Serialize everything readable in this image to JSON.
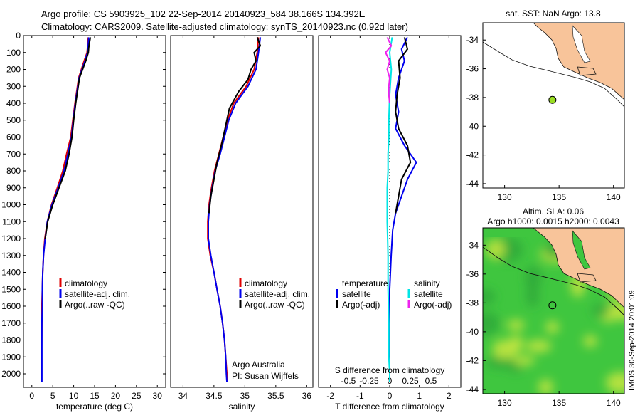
{
  "header": {
    "line1": "Argo profile: CS 5903925_102 22-Sep-2014 20140923_584 38.166S 134.392E",
    "line2": "Climatology: CARS2009. Satellite-adjusted climatology: synTS_20140923.nc (0.92d later)"
  },
  "colors": {
    "climatology": "#e00000",
    "satellite": "#0000ee",
    "argo": "#000000",
    "sal_satellite": "#00e5e5",
    "sal_argo": "#ee22ee",
    "land": "#f8c49a",
    "float_marker": "#99dd22",
    "sst_green": "#3fc63f",
    "sst_yellow": "#c8e640"
  },
  "vertical_label": "IMOS 30-Sep-2014 20:01:09",
  "chart_data": [
    {
      "type": "line",
      "id": "temperature",
      "xlabel": "temperature (deg C)",
      "xlim": [
        -2,
        32
      ],
      "xticks": [
        "0",
        "5",
        "10",
        "15",
        "20",
        "25",
        "30"
      ],
      "ylim": [
        0,
        2080
      ],
      "yinvert": true,
      "yticks": [
        "0",
        "100",
        "200",
        "300",
        "400",
        "500",
        "600",
        "700",
        "800",
        "900",
        "1000",
        "1100",
        "1200",
        "1300",
        "1400",
        "1500",
        "1600",
        "1700",
        "1800",
        "1900",
        "2000"
      ],
      "legend": [
        "climatology",
        "satellite-adj. clim.",
        "Argo(..raw -QC)"
      ],
      "series": [
        {
          "name": "climatology",
          "color": "#e00000",
          "x": [
            13.5,
            13.4,
            13.2,
            12.5,
            11.2,
            10.3,
            9.8,
            9.3,
            8.3,
            7.4,
            6.1,
            4.7,
            3.7,
            3.1,
            2.8,
            2.6,
            2.5,
            2.4,
            2.4,
            2.35,
            2.3,
            2.3
          ],
          "y": [
            10,
            50,
            100,
            150,
            250,
            400,
            500,
            600,
            700,
            800,
            900,
            1000,
            1100,
            1200,
            1300,
            1400,
            1500,
            1600,
            1700,
            1800,
            1900,
            2050
          ]
        },
        {
          "name": "satellite-adj. clim.",
          "color": "#0000ee",
          "x": [
            13.6,
            13.5,
            13.3,
            12.7,
            11.3,
            10.4,
            9.9,
            9.5,
            8.6,
            7.7,
            6.3,
            4.8,
            3.7,
            3.2,
            2.8,
            2.6,
            2.5,
            2.5,
            2.4,
            2.4,
            2.4,
            2.4
          ],
          "y": [
            10,
            50,
            100,
            150,
            250,
            400,
            500,
            600,
            700,
            800,
            900,
            1000,
            1100,
            1200,
            1300,
            1400,
            1500,
            1600,
            1700,
            1800,
            1900,
            2050
          ]
        },
        {
          "name": "Argo(..raw -QC)",
          "color": "#000000",
          "x": [
            14.0,
            13.8,
            13.6,
            13.5,
            12.9,
            11.4,
            10.5,
            10.0,
            9.6,
            8.9,
            8.0,
            6.5,
            5.0,
            3.8,
            3.2
          ],
          "y": [
            10,
            40,
            70,
            100,
            150,
            250,
            400,
            500,
            600,
            700,
            800,
            900,
            1000,
            1100,
            1200
          ]
        }
      ]
    },
    {
      "type": "line",
      "id": "salinity",
      "xlabel": "salinity",
      "xlim": [
        33.8,
        36.1
      ],
      "xticks": [
        "34",
        "34.5",
        "35",
        "35.5",
        "36"
      ],
      "ylim": [
        0,
        2080
      ],
      "yinvert": true,
      "legend": [
        "climatology",
        "satellite-adj. clim.",
        "Argo(..raw -QC)"
      ],
      "annotation": [
        "Argo Australia",
        "PI: Susan Wijffels"
      ],
      "series": [
        {
          "name": "climatology",
          "color": "#e00000",
          "x": [
            35.22,
            35.2,
            35.15,
            35.02,
            34.82,
            34.72,
            34.65,
            34.58,
            34.51,
            34.46,
            34.42,
            34.4,
            34.4,
            34.44,
            34.5,
            34.55,
            34.6,
            34.64,
            34.67,
            34.69,
            34.71,
            34.72
          ],
          "y": [
            10,
            100,
            200,
            300,
            400,
            500,
            600,
            700,
            800,
            900,
            1000,
            1100,
            1200,
            1300,
            1400,
            1500,
            1600,
            1700,
            1800,
            1900,
            2000,
            2050
          ]
        },
        {
          "name": "satellite-adj. clim.",
          "color": "#0000ee",
          "x": [
            35.25,
            35.22,
            35.18,
            35.05,
            34.85,
            34.74,
            34.67,
            34.6,
            34.52,
            34.47,
            34.43,
            34.41,
            34.41,
            34.45,
            34.5,
            34.55,
            34.6,
            34.64,
            34.67,
            34.69,
            34.7,
            34.71
          ],
          "y": [
            10,
            100,
            200,
            300,
            400,
            500,
            600,
            700,
            800,
            900,
            1000,
            1100,
            1200,
            1300,
            1400,
            1500,
            1600,
            1700,
            1800,
            1900,
            2000,
            2050
          ]
        },
        {
          "name": "Argo(..raw -QC)",
          "color": "#000000",
          "x": [
            35.2,
            35.25,
            35.15,
            35.18,
            35.1,
            35.05,
            34.9,
            34.75,
            34.68,
            34.62,
            34.55,
            34.5,
            34.45,
            34.42
          ],
          "y": [
            10,
            60,
            100,
            150,
            200,
            260,
            330,
            430,
            550,
            650,
            750,
            850,
            950,
            1050
          ]
        }
      ]
    },
    {
      "type": "line",
      "id": "difference",
      "xlabel": "T difference from climatology",
      "xlabel_top": "S difference from climatology",
      "xlim": [
        -2.4,
        2.4
      ],
      "xticks": [
        "-2",
        "-1",
        "0",
        "1",
        "2"
      ],
      "xticks_top": [
        "-0.5",
        "-0.25",
        "0",
        "0.25",
        "0.5"
      ],
      "ylim": [
        0,
        2080
      ],
      "yinvert": true,
      "legend_temperature": [
        "temperature",
        "satellite",
        "Argo(-adj)"
      ],
      "legend_salinity": [
        "salinity",
        "satellite",
        "Argo(-adj)"
      ],
      "series": [
        {
          "name": "T satellite",
          "color": "#0000ee",
          "x": [
            0.6,
            0.4,
            0.5,
            0.3,
            0.2,
            0.3,
            0.2,
            0.5,
            0.9,
            0.6,
            0.4,
            0.2,
            0.1,
            0.05,
            0.0,
            0.0,
            0.0,
            0.0,
            0.0
          ],
          "y": [
            10,
            80,
            150,
            250,
            350,
            450,
            550,
            650,
            750,
            850,
            950,
            1050,
            1150,
            1300,
            1500,
            1700,
            1900,
            2000,
            2050
          ]
        },
        {
          "name": "T Argo(-adj)",
          "color": "#000000",
          "x": [
            0.5,
            0.6,
            0.3,
            0.35,
            0.25,
            0.2,
            0.3,
            0.6,
            0.7,
            0.4,
            0.3,
            0.2
          ],
          "y": [
            10,
            80,
            150,
            250,
            350,
            450,
            550,
            650,
            750,
            850,
            950,
            1050
          ]
        },
        {
          "name": "S satellite",
          "color": "#00e5e5",
          "x": [
            0.03,
            0.0,
            0.02,
            0.0,
            -0.01,
            -0.01,
            -0.02,
            -0.02,
            -0.03,
            -0.03,
            -0.03,
            -0.02,
            -0.02,
            -0.01,
            -0.01,
            0.0,
            0.0
          ],
          "y": [
            10,
            100,
            200,
            350,
            500,
            600,
            700,
            800,
            900,
            1000,
            1100,
            1300,
            1500,
            1700,
            1900,
            2000,
            2050
          ]
        },
        {
          "name": "S Argo(-adj)",
          "color": "#ee22ee",
          "x": [
            -0.03,
            0.02,
            -0.05,
            0.0,
            -0.03,
            0.0,
            -0.01,
            -0.01,
            0.0
          ],
          "y": [
            10,
            60,
            100,
            150,
            200,
            250,
            300,
            350,
            400
          ]
        }
      ]
    },
    {
      "type": "scatter",
      "id": "map-top",
      "title": "sat. SST: NaN Argo: 13.8",
      "xlim": [
        128,
        141
      ],
      "ylim": [
        -44.3,
        -32.8
      ],
      "xticks": [
        "130",
        "135",
        "140"
      ],
      "yticks": [
        "-34",
        "-36",
        "-38",
        "-40",
        "-42",
        "-44"
      ],
      "points": [
        {
          "x": 134.392,
          "y": -38.166
        }
      ]
    },
    {
      "type": "heatmap",
      "id": "map-bottom",
      "title_line1": "Altim. SLA: 0.06",
      "title_line2": "Argo h1000: 0.0015 h2000: 0.0043",
      "xlim": [
        128,
        141
      ],
      "ylim": [
        -44.3,
        -32.8
      ],
      "xticks": [
        "130",
        "135",
        "140"
      ],
      "yticks": [
        "-34",
        "-36",
        "-38",
        "-40",
        "-42",
        "-44"
      ],
      "points": [
        {
          "x": 134.392,
          "y": -38.166
        }
      ]
    }
  ]
}
